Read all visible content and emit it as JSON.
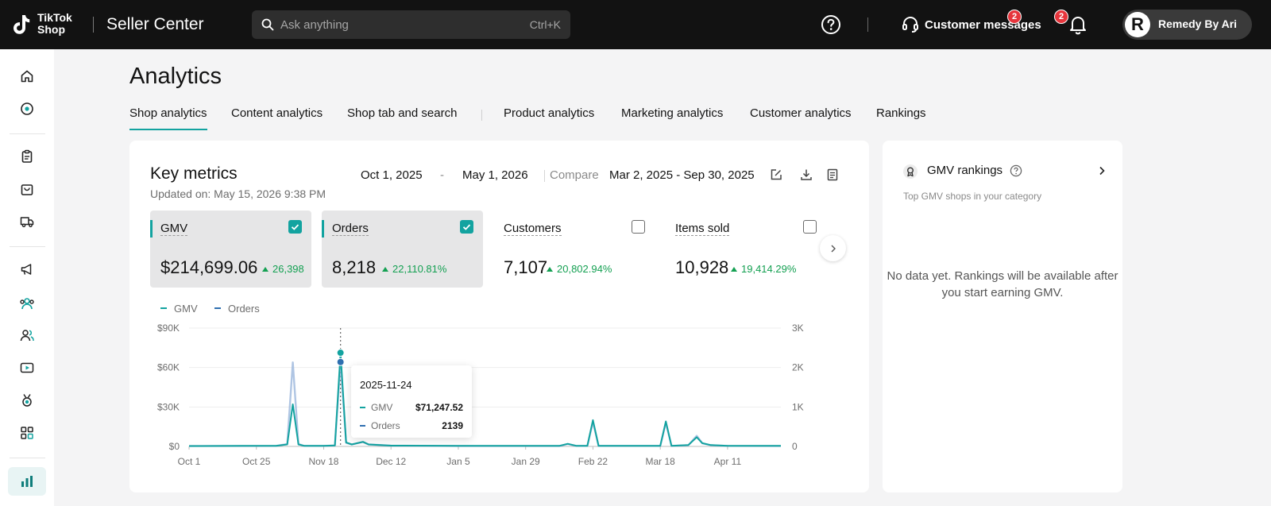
{
  "header": {
    "logo_line1": "TikTok",
    "logo_line2": "Shop",
    "title": "Seller Center",
    "search_placeholder": "Ask anything",
    "search_shortcut": "Ctrl+K",
    "customer_messages": "Customer messages",
    "messages_badge": "2",
    "notifications_badge": "2",
    "account_initial": "R",
    "account_name": "Remedy By Ari"
  },
  "sidebar": {
    "icons": [
      "home-icon",
      "compass-icon",
      "clipboard-icon",
      "package-icon",
      "delivery-truck-icon",
      "megaphone-icon",
      "creators-icon",
      "customers-icon",
      "video-icon",
      "medal-icon",
      "apps-grid-icon",
      "analytics-bar-icon"
    ],
    "active": "analytics-bar-icon"
  },
  "page": {
    "title": "Analytics",
    "tabs": [
      "Shop analytics",
      "Content analytics",
      "Shop tab and search",
      "Product analytics",
      "Marketing analytics",
      "Customer analytics",
      "Rankings"
    ],
    "active_tab": "Shop analytics"
  },
  "key_metrics": {
    "title": "Key metrics",
    "updated": "Updated on: May 15, 2026 9:38 PM",
    "date_start": "Oct 1, 2025",
    "date_dash": "-",
    "date_end": "May 1, 2026",
    "compare_label": "Compare",
    "compare_range": "Mar 2, 2025 - Sep 30, 2025",
    "metrics": [
      {
        "label": "GMV",
        "value": "$214,699.06",
        "change": "26,398",
        "selected": true
      },
      {
        "label": "Orders",
        "value": "8,218",
        "change": "22,110.81%",
        "selected": true
      },
      {
        "label": "Customers",
        "value": "7,107",
        "change": "20,802.94%",
        "selected": false
      },
      {
        "label": "Items sold",
        "value": "10,928",
        "change": "19,414.29%",
        "selected": false
      }
    ],
    "legend": [
      "GMV",
      "Orders"
    ],
    "tooltip": {
      "date": "2025-11-24",
      "gmv_label": "GMV",
      "gmv_value": "$71,247.52",
      "orders_label": "Orders",
      "orders_value": "2139"
    },
    "colors": {
      "gmv": "#13a3a0",
      "orders": "#2f6fb0",
      "accent": "#13a3a0",
      "positive": "#14a052"
    }
  },
  "chart_data": {
    "type": "line",
    "x_labels": [
      "Oct 1",
      "Oct 25",
      "Nov 18",
      "Dec 12",
      "Jan 5",
      "Jan 29",
      "Feb 22",
      "Mar 18",
      "Apr 11"
    ],
    "y_left_ticks": [
      "$90K",
      "$60K",
      "$30K",
      "$0"
    ],
    "y_right_ticks": [
      "3K",
      "2K",
      "1K",
      "0"
    ],
    "y_left_range": [
      0,
      90000
    ],
    "y_right_range": [
      0,
      3000
    ],
    "grid": true,
    "x_start": "2025-10-01",
    "x_end": "2026-04-30",
    "series": [
      {
        "name": "GMV",
        "axis": "left",
        "points": [
          [
            "2025-10-01",
            300
          ],
          [
            "2025-10-20",
            400
          ],
          [
            "2025-11-01",
            500
          ],
          [
            "2025-11-05",
            1500
          ],
          [
            "2025-11-07",
            32000
          ],
          [
            "2025-11-09",
            1500
          ],
          [
            "2025-11-11",
            500
          ],
          [
            "2025-11-18",
            500
          ],
          [
            "2025-11-22",
            800
          ],
          [
            "2025-11-24",
            71247.52
          ],
          [
            "2025-11-26",
            3000
          ],
          [
            "2025-11-28",
            1500
          ],
          [
            "2025-11-30",
            2500
          ],
          [
            "2025-12-02",
            3500
          ],
          [
            "2025-12-04",
            1500
          ],
          [
            "2025-12-12",
            600
          ],
          [
            "2026-01-05",
            400
          ],
          [
            "2026-01-29",
            400
          ],
          [
            "2026-02-10",
            400
          ],
          [
            "2026-02-13",
            2000
          ],
          [
            "2026-02-16",
            500
          ],
          [
            "2026-02-20",
            500
          ],
          [
            "2026-02-22",
            20000
          ],
          [
            "2026-02-24",
            500
          ],
          [
            "2026-03-18",
            500
          ],
          [
            "2026-03-20",
            19000
          ],
          [
            "2026-03-22",
            500
          ],
          [
            "2026-03-28",
            1000
          ],
          [
            "2026-03-31",
            7000
          ],
          [
            "2026-04-02",
            2500
          ],
          [
            "2026-04-05",
            1000
          ],
          [
            "2026-04-11",
            500
          ],
          [
            "2026-04-30",
            400
          ]
        ]
      },
      {
        "name": "Orders",
        "axis": "right",
        "points": [
          [
            "2025-10-01",
            10
          ],
          [
            "2025-10-20",
            12
          ],
          [
            "2025-11-01",
            15
          ],
          [
            "2025-11-05",
            60
          ],
          [
            "2025-11-07",
            2130
          ],
          [
            "2025-11-09",
            60
          ],
          [
            "2025-11-11",
            15
          ],
          [
            "2025-11-18",
            15
          ],
          [
            "2025-11-22",
            25
          ],
          [
            "2025-11-24",
            2139
          ],
          [
            "2025-11-26",
            90
          ],
          [
            "2025-11-28",
            50
          ],
          [
            "2025-11-30",
            80
          ],
          [
            "2025-12-02",
            110
          ],
          [
            "2025-12-04",
            50
          ],
          [
            "2025-12-12",
            20
          ],
          [
            "2026-01-05",
            13
          ],
          [
            "2026-01-29",
            13
          ],
          [
            "2026-02-10",
            13
          ],
          [
            "2026-02-13",
            60
          ],
          [
            "2026-02-16",
            15
          ],
          [
            "2026-02-20",
            15
          ],
          [
            "2026-02-22",
            620
          ],
          [
            "2026-02-24",
            15
          ],
          [
            "2026-03-18",
            15
          ],
          [
            "2026-03-20",
            600
          ],
          [
            "2026-03-22",
            15
          ],
          [
            "2026-03-28",
            30
          ],
          [
            "2026-03-31",
            270
          ],
          [
            "2026-04-02",
            80
          ],
          [
            "2026-04-05",
            30
          ],
          [
            "2026-04-11",
            15
          ],
          [
            "2026-04-30",
            12
          ]
        ]
      }
    ],
    "highlight_date": "2025-11-24"
  },
  "rankings": {
    "title": "GMV rankings",
    "subtitle": "Top GMV shops in your category",
    "empty": "No data yet. Rankings will be available after you start earning GMV."
  }
}
